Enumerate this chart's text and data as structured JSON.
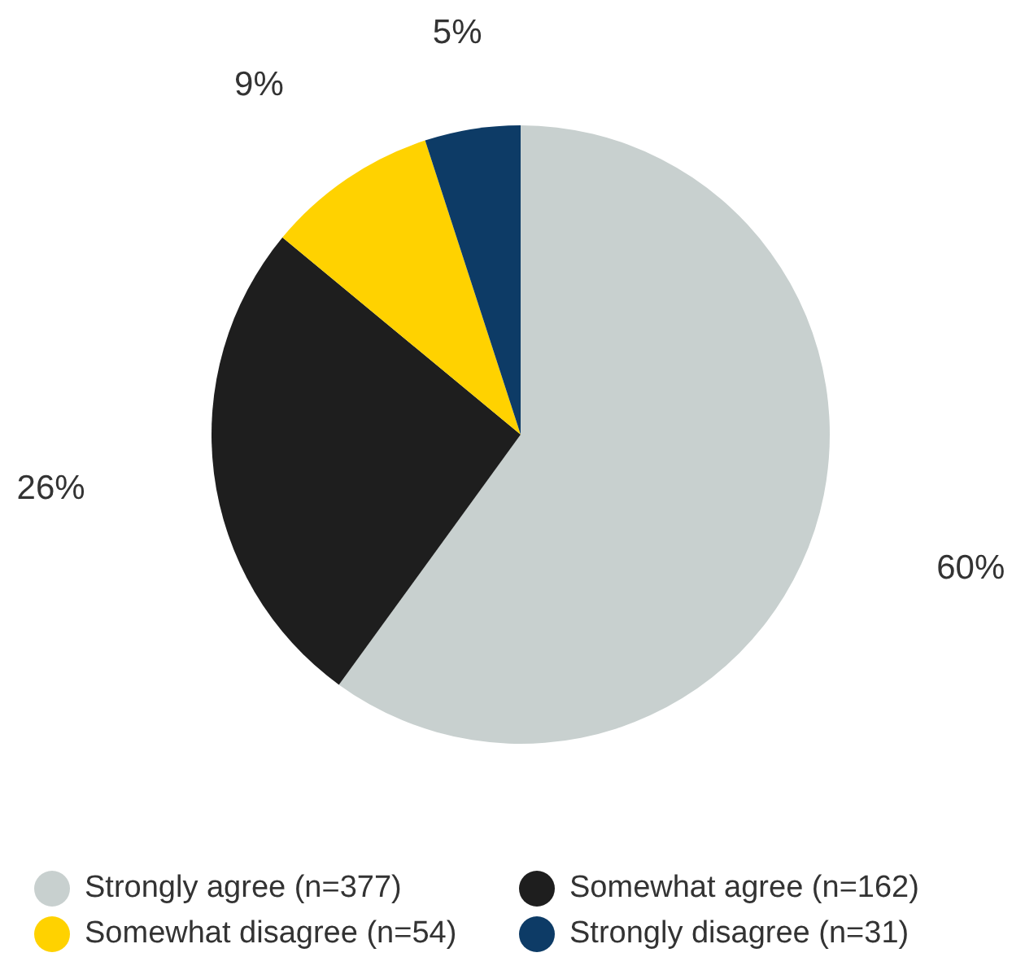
{
  "chart_data": {
    "type": "pie",
    "categories": [
      "Strongly agree (n=377)",
      "Somewhat agree (n=162)",
      "Somewhat disagree (n=54)",
      "Strongly disagree (n=31)"
    ],
    "values": [
      60,
      26,
      9,
      5
    ],
    "colors": [
      "#c8d0cf",
      "#1e1e1e",
      "#ffd200",
      "#0d3b66"
    ],
    "value_labels": [
      "60%",
      "26%",
      "9%",
      "5%"
    ],
    "legend": "bottom"
  }
}
